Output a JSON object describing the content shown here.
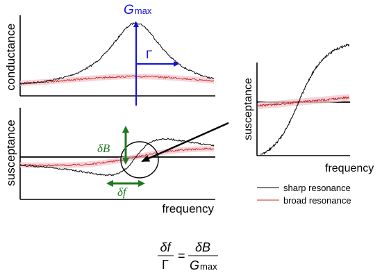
{
  "labels": {
    "g_max": "G",
    "g_max_sub": "max",
    "gamma": "Γ",
    "delta_b": "δB",
    "delta_f": "δf",
    "conductance": "conductance",
    "susceptance_left": "susceptance",
    "frequency_left": "frequency",
    "susceptance_right": "susceptance",
    "frequency_right": "frequency"
  },
  "legend": [
    {
      "label": "sharp resonance",
      "color": "#000000"
    },
    {
      "label": "broad resonance",
      "color": "#c0281c"
    }
  ],
  "equation": {
    "lhs_num": "δf",
    "lhs_den": "Γ",
    "equals": "=",
    "rhs_num": "δB",
    "rhs_den": "G",
    "rhs_den_sub": "max"
  },
  "colors": {
    "sharp": "#000000",
    "broad": "#c0281c",
    "broad_band": "#f3c6d0",
    "annotation_blue": "#1010e0",
    "annotation_green": "#1f7a1f"
  }
}
